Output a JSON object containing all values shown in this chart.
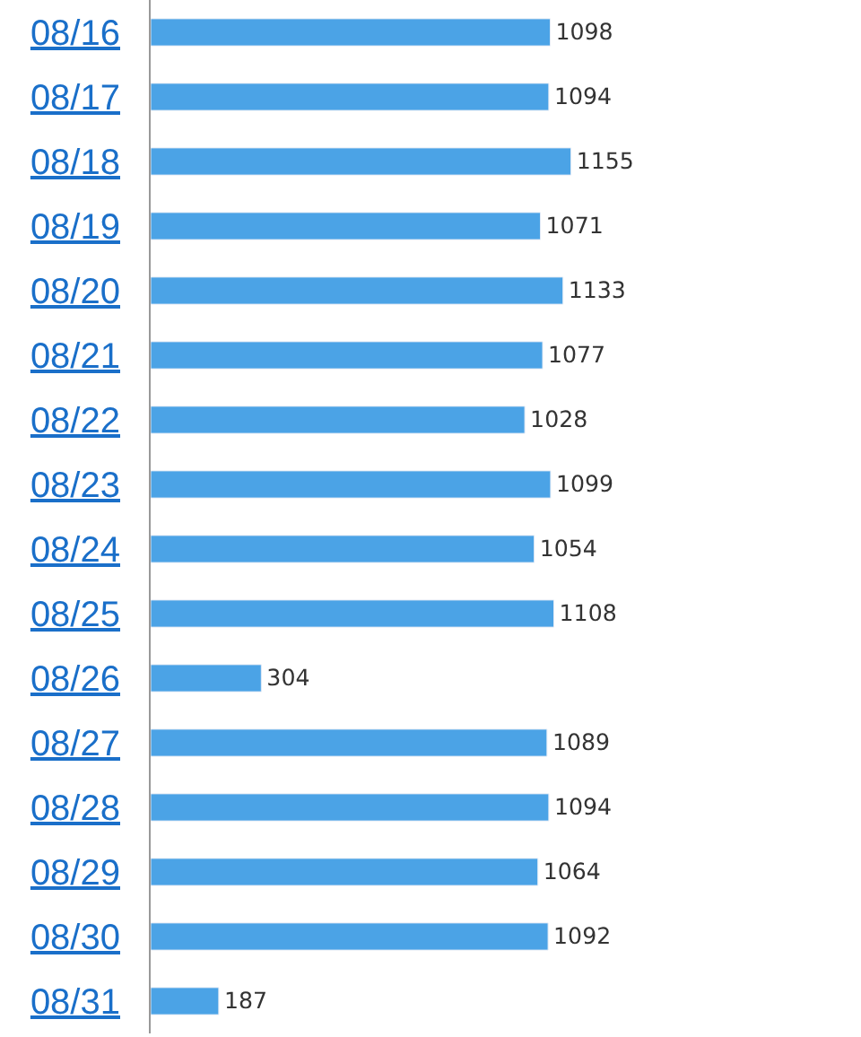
{
  "chart_data": {
    "type": "bar",
    "orientation": "horizontal",
    "categories": [
      "08/16",
      "08/17",
      "08/18",
      "08/19",
      "08/20",
      "08/21",
      "08/22",
      "08/23",
      "08/24",
      "08/25",
      "08/26",
      "08/27",
      "08/28",
      "08/29",
      "08/30",
      "08/31"
    ],
    "values": [
      1098,
      1094,
      1155,
      1071,
      1133,
      1077,
      1028,
      1099,
      1054,
      1108,
      304,
      1089,
      1094,
      1064,
      1092,
      187
    ],
    "color": "#4ba3e6",
    "data_labels": true
  }
}
